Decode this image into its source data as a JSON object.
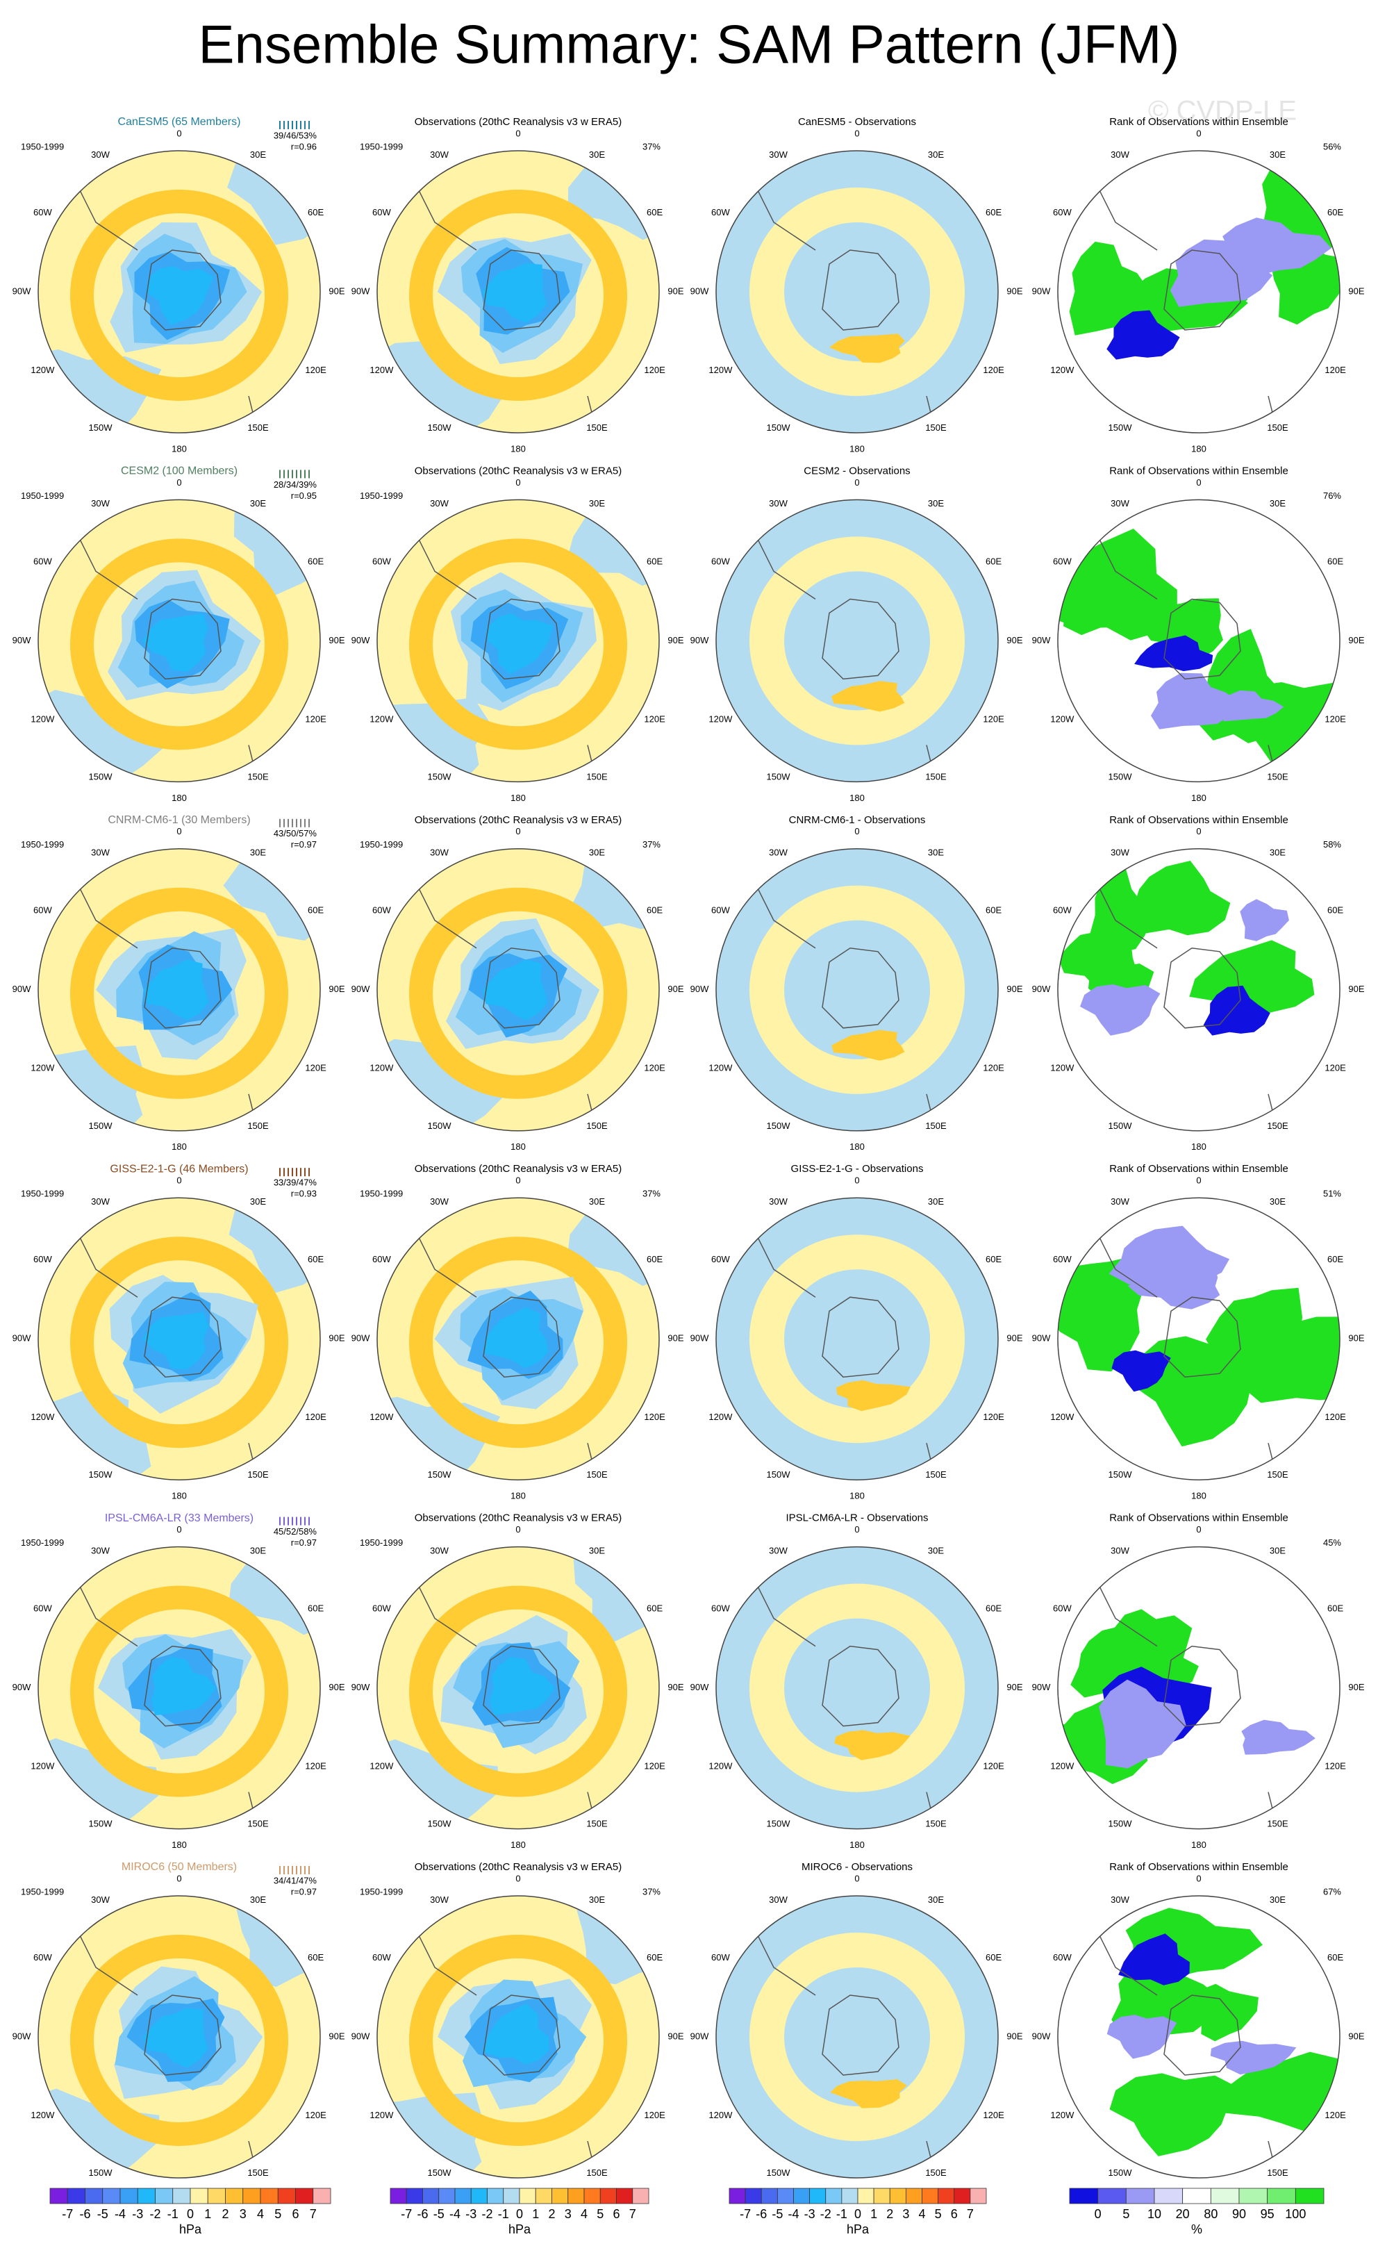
{
  "title": "Ensemble Summary: SAM Pattern (JFM)",
  "watermark": "© CVDP-LE",
  "period": "1950-1999",
  "lon_labels": [
    "0",
    "30E",
    "60E",
    "90E",
    "120E",
    "150E",
    "180",
    "150W",
    "120W",
    "90W",
    "60W",
    "30W"
  ],
  "obs_title": "Observations (20thC Reanalysis v3 w ERA5)",
  "rank_title": "Rank of Observations within Ensemble",
  "rows": [
    {
      "model": "CanESM5 (65 Members)",
      "color": "#1f7f9f",
      "stats": "39/46/53%",
      "r": "r=0.96",
      "obs_pct": "37%",
      "diff_title": "CanESM5 - Observations",
      "rank_pct": "56%"
    },
    {
      "model": "CESM2 (100 Members)",
      "color": "#4f7f5f",
      "stats": "28/34/39%",
      "r": "r=0.95",
      "diff_title": "CESM2 - Observations",
      "rank_pct": "76%"
    },
    {
      "model": "CNRM-CM6-1 (30 Members)",
      "color": "#808080",
      "stats": "43/50/57%",
      "r": "r=0.97",
      "obs_pct": "37%",
      "diff_title": "CNRM-CM6-1 - Observations",
      "rank_pct": "58%"
    },
    {
      "model": "GISS-E2-1-G (46 Members)",
      "color": "#8b4a1f",
      "stats": "33/39/47%",
      "r": "r=0.93",
      "obs_pct": "37%",
      "diff_title": "GISS-E2-1-G - Observations",
      "rank_pct": "51%"
    },
    {
      "model": "IPSL-CM6A-LR (33 Members)",
      "color": "#7a5fd8",
      "stats": "45/52/58%",
      "r": "r=0.97",
      "diff_title": "IPSL-CM6A-LR - Observations",
      "rank_pct": "45%"
    },
    {
      "model": "MIROC6 (50 Members)",
      "color": "#d09a6a",
      "stats": "34/41/47%",
      "r": "r=0.97",
      "obs_pct": "37%",
      "diff_title": "MIROC6 - Observations",
      "rank_pct": "67%"
    }
  ],
  "colorbar": {
    "labels": [
      -7,
      -6,
      -5,
      -4,
      -3,
      -2,
      -1,
      0,
      1,
      2,
      3,
      4,
      5,
      6,
      7
    ],
    "unit": "hPa",
    "colors": [
      "#7a1fe0",
      "#3a3ae8",
      "#4a6af0",
      "#5a8af5",
      "#3aa0f5",
      "#20b8f8",
      "#7ac8f5",
      "#b4dcf0",
      "#fff3a8",
      "#ffd966",
      "#ffbf33",
      "#ff9f1f",
      "#ff7a1f",
      "#f04020",
      "#e02020",
      "#f8b0b0"
    ]
  },
  "rank_colorbar": {
    "labels": [
      0,
      5,
      10,
      20,
      80,
      90,
      95,
      100
    ],
    "unit": "%",
    "colors": [
      "#1010e0",
      "#5a5af0",
      "#9a9af5",
      "#d8d8fa",
      "#ffffff",
      "#e0fae0",
      "#b0f5b0",
      "#70ee70",
      "#20e020"
    ]
  }
}
